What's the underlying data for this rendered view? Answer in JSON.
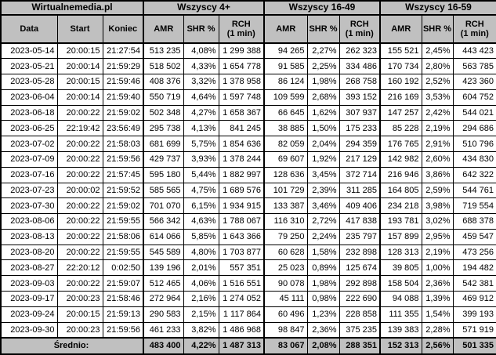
{
  "colors": {
    "page_bg": "#000000",
    "header_bg": "#c0c0c0",
    "footer_bg": "#c0c0c0",
    "row_bg": "#ffffff",
    "border": "#000000",
    "text": "#000000"
  },
  "chart_data": {
    "type": "table",
    "title": "Wirtualnemedia.pl",
    "column_groups": [
      "Wszyscy 4+",
      "Wszyscy 16-49",
      "Wszyscy 16-59"
    ],
    "id_columns": [
      "Data",
      "Start",
      "Koniec"
    ],
    "metric_columns": [
      "AMR",
      "SHR %",
      "RCH\n(1 min)"
    ],
    "rows": [
      [
        "2023-05-14",
        "20:00:15",
        "21:27:54",
        "513 235",
        "4,08%",
        "1 299 388",
        "94 265",
        "2,27%",
        "262 323",
        "155 521",
        "2,45%",
        "443 423"
      ],
      [
        "2023-05-21",
        "20:00:14",
        "21:59:29",
        "518 502",
        "4,33%",
        "1 654 778",
        "91 585",
        "2,25%",
        "334 486",
        "170 734",
        "2,80%",
        "563 785"
      ],
      [
        "2023-05-28",
        "20:00:15",
        "21:59:46",
        "408 376",
        "3,32%",
        "1 378 958",
        "86 124",
        "1,98%",
        "268 758",
        "160 192",
        "2,52%",
        "423 360"
      ],
      [
        "2023-06-04",
        "20:00:14",
        "21:59:40",
        "550 719",
        "4,64%",
        "1 597 748",
        "109 599",
        "2,68%",
        "393 152",
        "216 169",
        "3,53%",
        "604 752"
      ],
      [
        "2023-06-18",
        "20:00:22",
        "21:59:02",
        "502 348",
        "4,27%",
        "1 658 367",
        "66 645",
        "1,62%",
        "307 937",
        "147 257",
        "2,42%",
        "544 021"
      ],
      [
        "2023-06-25",
        "22:19:42",
        "23:56:49",
        "295 738",
        "4,13%",
        "841 245",
        "38 885",
        "1,50%",
        "175 233",
        "85 228",
        "2,19%",
        "294 686"
      ],
      [
        "2023-07-02",
        "20:00:22",
        "21:58:03",
        "681 699",
        "5,75%",
        "1 854 636",
        "82 059",
        "2,04%",
        "294 359",
        "176 765",
        "2,91%",
        "510 796"
      ],
      [
        "2023-07-09",
        "20:00:22",
        "21:59:56",
        "429 737",
        "3,93%",
        "1 378 244",
        "69 607",
        "1,92%",
        "217 129",
        "142 982",
        "2,60%",
        "434 830"
      ],
      [
        "2023-07-16",
        "20:00:22",
        "21:57:45",
        "595 180",
        "5,44%",
        "1 882 997",
        "128 636",
        "3,45%",
        "372 714",
        "216 946",
        "3,86%",
        "642 322"
      ],
      [
        "2023-07-23",
        "20:00:02",
        "21:59:52",
        "585 565",
        "4,75%",
        "1 689 576",
        "101 729",
        "2,39%",
        "311 285",
        "164 805",
        "2,59%",
        "544 761"
      ],
      [
        "2023-07-30",
        "20:00:22",
        "21:59:02",
        "701 070",
        "6,15%",
        "1 934 915",
        "133 387",
        "3,46%",
        "409 406",
        "234 218",
        "3,98%",
        "719 554"
      ],
      [
        "2023-08-06",
        "20:00:22",
        "21:59:55",
        "566 342",
        "4,63%",
        "1 788 067",
        "116 310",
        "2,72%",
        "417 838",
        "193 781",
        "3,02%",
        "688 378"
      ],
      [
        "2023-08-13",
        "20:00:22",
        "21:58:06",
        "614 066",
        "5,85%",
        "1 643 366",
        "79 250",
        "2,24%",
        "235 797",
        "157 899",
        "2,95%",
        "459 547"
      ],
      [
        "2023-08-20",
        "20:00:22",
        "21:59:55",
        "545 589",
        "4,80%",
        "1 703 877",
        "60 628",
        "1,58%",
        "232 898",
        "128 313",
        "2,19%",
        "473 256"
      ],
      [
        "2023-08-27",
        "22:20:12",
        "0:02:50",
        "139 196",
        "2,01%",
        "557 351",
        "25 023",
        "0,89%",
        "125 674",
        "39 805",
        "1,00%",
        "194 482"
      ],
      [
        "2023-09-03",
        "20:00:22",
        "21:59:07",
        "512 465",
        "4,06%",
        "1 516 551",
        "90 078",
        "1,98%",
        "292 898",
        "158 504",
        "2,36%",
        "542 381"
      ],
      [
        "2023-09-17",
        "20:00:23",
        "21:58:46",
        "272 964",
        "2,16%",
        "1 274 052",
        "45 111",
        "0,98%",
        "222 690",
        "94 088",
        "1,39%",
        "469 912"
      ],
      [
        "2023-09-24",
        "20:00:15",
        "21:59:13",
        "290 583",
        "2,15%",
        "1 117 864",
        "60 496",
        "1,23%",
        "228 858",
        "111 355",
        "1,54%",
        "399 193"
      ],
      [
        "2023-09-30",
        "20:00:23",
        "21:59:56",
        "461 233",
        "3,82%",
        "1 486 968",
        "98 847",
        "2,36%",
        "375 235",
        "139 383",
        "2,28%",
        "571 919"
      ]
    ],
    "footer_label": "Średnio:",
    "footer_values": [
      "483 400",
      "4,22%",
      "1 487 313",
      "83 067",
      "2,08%",
      "288 351",
      "152 313",
      "2,56%",
      "501 335"
    ]
  }
}
